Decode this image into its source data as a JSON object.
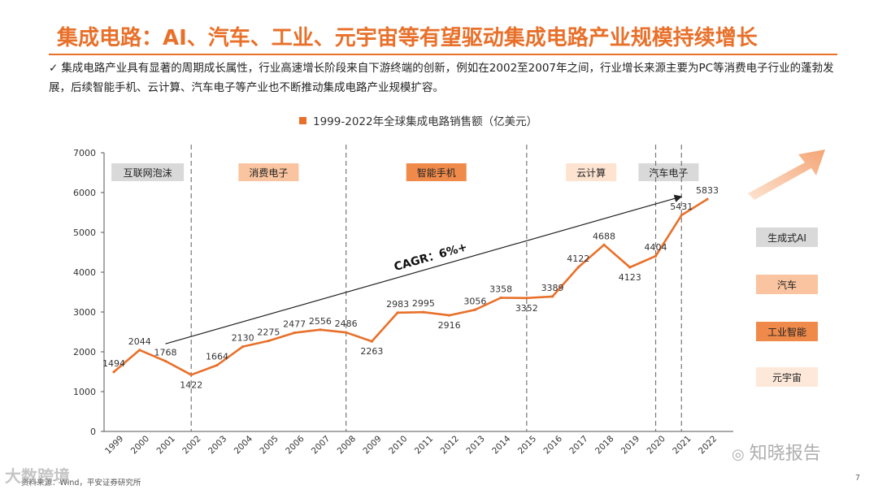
{
  "page": {
    "title": "集成电路：AI、汽车、工业、元宇宙等有望驱动集成电路产业规模持续增长",
    "bullet": "集成电路产业具有显著的周期成长属性，行业高速增长阶段来自下游终端的创新，例如在2002至2007年之间，行业增长来源主要为PC等消费电子行业的蓬勃发展，后续智能手机、云计算、汽车电子等产业也不断推动集成电路产业规模扩容。",
    "check_icon": "check-icon",
    "source": "资料来源：Wind，平安证券研究所",
    "page_number": "7",
    "watermark_left": "大数跨境",
    "watermark_right": "知晓报告"
  },
  "chart_data": {
    "type": "line",
    "title": "1999-2022年全球集成电路销售额（亿美元）",
    "x": [
      "1999",
      "2000",
      "2001",
      "2002",
      "2003",
      "2004",
      "2005",
      "2006",
      "2007",
      "2008",
      "2009",
      "2010",
      "2011",
      "2012",
      "2013",
      "2014",
      "2015",
      "2016",
      "2017",
      "2018",
      "2019",
      "2020",
      "2021",
      "2022"
    ],
    "series": [
      {
        "name": "1999-2022年全球集成电路销售额（亿美元）",
        "values": [
          1494,
          2044,
          1768,
          1422,
          1664,
          2130,
          2275,
          2477,
          2556,
          2486,
          2263,
          2983,
          2995,
          2916,
          3056,
          3358,
          3352,
          3389,
          4122,
          4688,
          4123,
          4404,
          5431,
          5833
        ]
      }
    ],
    "ylim": [
      0,
      7000
    ],
    "yticks": [
      0,
      1000,
      2000,
      3000,
      4000,
      5000,
      6000,
      7000
    ],
    "grid": false,
    "line_color": "#e8702a",
    "trend_label": "CAGR：6%+",
    "trend_from": {
      "x": "2001",
      "y": 2200
    },
    "trend_to": {
      "x": "2021",
      "y": 5900
    },
    "dividers": [
      "2002",
      "2008",
      "2015",
      "2020",
      "2021"
    ],
    "eras": [
      {
        "label": "互联网泡沫",
        "from": "1999",
        "to": "2002",
        "color": "#d9d9d9"
      },
      {
        "label": "消费电子",
        "from": "2002",
        "to": "2008",
        "color": "#f9c49f"
      },
      {
        "label": "智能手机",
        "from": "2008",
        "to": "2015",
        "color": "#f08a4b"
      },
      {
        "label": "云计算",
        "from": "2015",
        "to": "2020",
        "color": "#fde3d0"
      },
      {
        "label": "汽车电子",
        "from": "2020",
        "to": "2021",
        "color": "#d9d9d9"
      }
    ],
    "future": [
      {
        "label": "生成式AI",
        "color": "#d9d9d9"
      },
      {
        "label": "汽车",
        "color": "#f9c49f"
      },
      {
        "label": "工业智能",
        "color": "#f08a4b"
      },
      {
        "label": "元宇宙",
        "color": "#fde8da"
      }
    ]
  }
}
